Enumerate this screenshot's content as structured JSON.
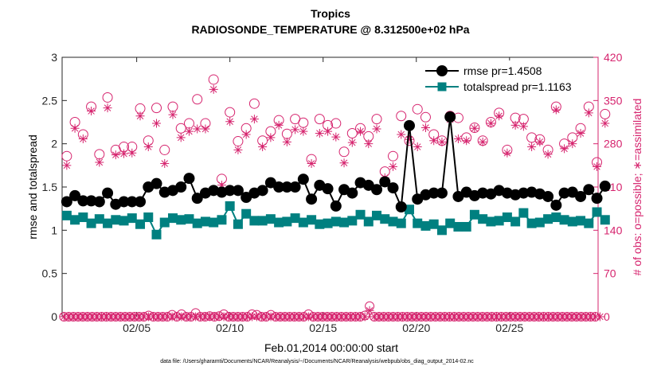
{
  "chart_data": {
    "type": "line",
    "title": "Tropics",
    "subtitle": "RADIOSONDE_TEMPERATURE @ 8.312500e+02 hPa",
    "xlabel": "Feb.01,2014 00:00:00 start",
    "ylabel": "rmse and totalspread",
    "y2label": "# of obs: o=possible; ∗=assimilated",
    "footnote": "data file: /Users/gharamti/Documents/NCAR/Reanalysis/~/Documents/NCAR/Reanalysis/webpub/obs_diag_output_2014-02.nc",
    "xlim": [
      1,
      29.75
    ],
    "x_ticks": [
      5,
      10,
      15,
      20,
      25
    ],
    "x_tick_labels": [
      "02/05",
      "02/10",
      "02/15",
      "02/20",
      "02/25"
    ],
    "ylim": [
      0,
      3
    ],
    "y_ticks": [
      "0",
      "0.5",
      "1",
      "1.5",
      "2",
      "2.5",
      "3"
    ],
    "y2lim": [
      0,
      420
    ],
    "y2_ticks": [
      "0",
      "70",
      "140",
      "210",
      "280",
      "350",
      "420"
    ],
    "colors": {
      "rmse": "#000000",
      "spread": "#008080",
      "obs": "#d6246e"
    },
    "legend_position": "top-right",
    "series": [
      {
        "name": "rmse",
        "legend_label": "rmse pr=1.4508",
        "axis": "left",
        "values": [
          1.33,
          1.4,
          1.34,
          1.34,
          1.33,
          1.43,
          1.3,
          1.33,
          1.33,
          1.33,
          1.5,
          1.54,
          1.44,
          1.46,
          1.5,
          1.6,
          1.37,
          1.43,
          1.46,
          1.44,
          1.46,
          1.46,
          1.38,
          1.43,
          1.46,
          1.55,
          1.5,
          1.5,
          1.5,
          1.59,
          1.36,
          1.52,
          1.48,
          1.28,
          1.47,
          1.43,
          1.55,
          1.52,
          1.47,
          1.56,
          1.49,
          1.27,
          2.21,
          1.36,
          1.41,
          1.43,
          1.43,
          2.31,
          1.39,
          1.44,
          1.4,
          1.43,
          1.42,
          1.46,
          1.43,
          1.41,
          1.43,
          1.44,
          1.42,
          1.39,
          1.29,
          1.43,
          1.44,
          1.39,
          1.47,
          1.37,
          1.51
        ]
      },
      {
        "name": "totalspread",
        "legend_label": "totalspread pr=1.1163",
        "axis": "left",
        "values": [
          1.17,
          1.12,
          1.15,
          1.08,
          1.13,
          1.08,
          1.12,
          1.11,
          1.14,
          1.07,
          1.15,
          0.95,
          1.09,
          1.14,
          1.12,
          1.13,
          1.08,
          1.1,
          1.09,
          1.12,
          1.28,
          1.07,
          1.19,
          1.11,
          1.11,
          1.13,
          1.09,
          1.1,
          1.14,
          1.09,
          1.12,
          1.07,
          1.08,
          1.1,
          1.09,
          1.11,
          1.18,
          1.1,
          1.17,
          1.13,
          1.1,
          1.08,
          1.24,
          1.08,
          1.05,
          1.07,
          1.0,
          1.08,
          1.04,
          1.04,
          1.18,
          1.13,
          1.1,
          1.11,
          1.15,
          1.1,
          1.2,
          1.08,
          1.09,
          1.13,
          1.15,
          1.12,
          1.1,
          1.11,
          1.08,
          1.21,
          1.12
        ]
      },
      {
        "name": "obs possible",
        "marker": "o",
        "axis": "right",
        "values": [
          260,
          315,
          295,
          340,
          263,
          355,
          270,
          275,
          275,
          337,
          285,
          338,
          270,
          340,
          305,
          313,
          352,
          313,
          384,
          223,
          331,
          284,
          305,
          345,
          285,
          300,
          318,
          296,
          320,
          314,
          255,
          320,
          310,
          313,
          267,
          297,
          305,
          292,
          320,
          235,
          260,
          325,
          285,
          336,
          323,
          295,
          285,
          325,
          322,
          290,
          306,
          285,
          315,
          330,
          270,
          322,
          320,
          290,
          287,
          270,
          340,
          280,
          290,
          305,
          340,
          250,
          328
        ]
      },
      {
        "name": "obs assimilated",
        "marker": "*",
        "axis": "right",
        "values": [
          245,
          305,
          288,
          333,
          250,
          338,
          262,
          264,
          265,
          325,
          275,
          313,
          248,
          327,
          290,
          300,
          304,
          304,
          368,
          213,
          316,
          270,
          295,
          320,
          275,
          290,
          310,
          283,
          303,
          300,
          248,
          297,
          300,
          291,
          249,
          282,
          300,
          280,
          304,
          225,
          243,
          295,
          287,
          275,
          306,
          285,
          283,
          319,
          288,
          285,
          305,
          283,
          313,
          325,
          265,
          310,
          308,
          275,
          283,
          263,
          335,
          272,
          280,
          297,
          330,
          243,
          313
        ]
      },
      {
        "name": "obs possible (bottom)",
        "marker": "o",
        "axis": "right",
        "values": [
          0,
          0,
          0,
          0,
          0,
          0,
          0,
          0,
          0,
          0,
          0,
          0,
          0,
          0,
          0,
          0,
          0,
          0,
          2,
          0,
          0,
          0,
          0,
          3,
          0,
          4,
          0,
          0,
          6,
          0,
          0,
          1,
          0,
          1,
          4,
          0,
          0,
          0,
          0,
          0,
          4,
          3,
          0,
          0,
          3,
          0,
          0,
          0,
          0,
          0,
          0,
          0,
          4,
          0,
          0,
          0,
          0,
          0,
          0,
          0,
          0,
          0,
          0,
          0,
          2,
          17,
          0,
          0,
          0,
          0,
          0,
          0,
          0,
          0,
          0,
          0,
          0,
          0,
          0,
          0,
          0,
          0,
          0,
          0,
          0,
          0,
          0,
          0,
          0,
          0,
          0,
          0,
          0,
          0,
          0,
          0,
          0,
          0,
          0,
          0,
          0,
          0,
          0,
          0,
          0,
          0,
          0,
          0,
          0,
          0,
          0,
          0,
          0,
          0
        ]
      },
      {
        "name": "obs assimilated (bottom)",
        "marker": "*",
        "axis": "right",
        "values": [
          0,
          0,
          0,
          0,
          0,
          0,
          0,
          0,
          0,
          0,
          0,
          0,
          0,
          0,
          0,
          0,
          0,
          0,
          0,
          0,
          0,
          0,
          0,
          0,
          0,
          0,
          0,
          0,
          0,
          0,
          0,
          0,
          0,
          0,
          0,
          0,
          0,
          0,
          0,
          0,
          0,
          0,
          0,
          0,
          0,
          0,
          0,
          0,
          0,
          0,
          0,
          0,
          0,
          0,
          0,
          0,
          0,
          0,
          0,
          0,
          0,
          0,
          0,
          0,
          0,
          10,
          0,
          0,
          0,
          0,
          0,
          0,
          0,
          0,
          0,
          0,
          0,
          0,
          0,
          0,
          0,
          0,
          0,
          0,
          0,
          0,
          0,
          0,
          0,
          0,
          0,
          0,
          0,
          0,
          0,
          0,
          0,
          0,
          0,
          0,
          0,
          0,
          0,
          0,
          0,
          0,
          0,
          0,
          0,
          0,
          0,
          0,
          0,
          0,
          0
        ]
      }
    ]
  }
}
